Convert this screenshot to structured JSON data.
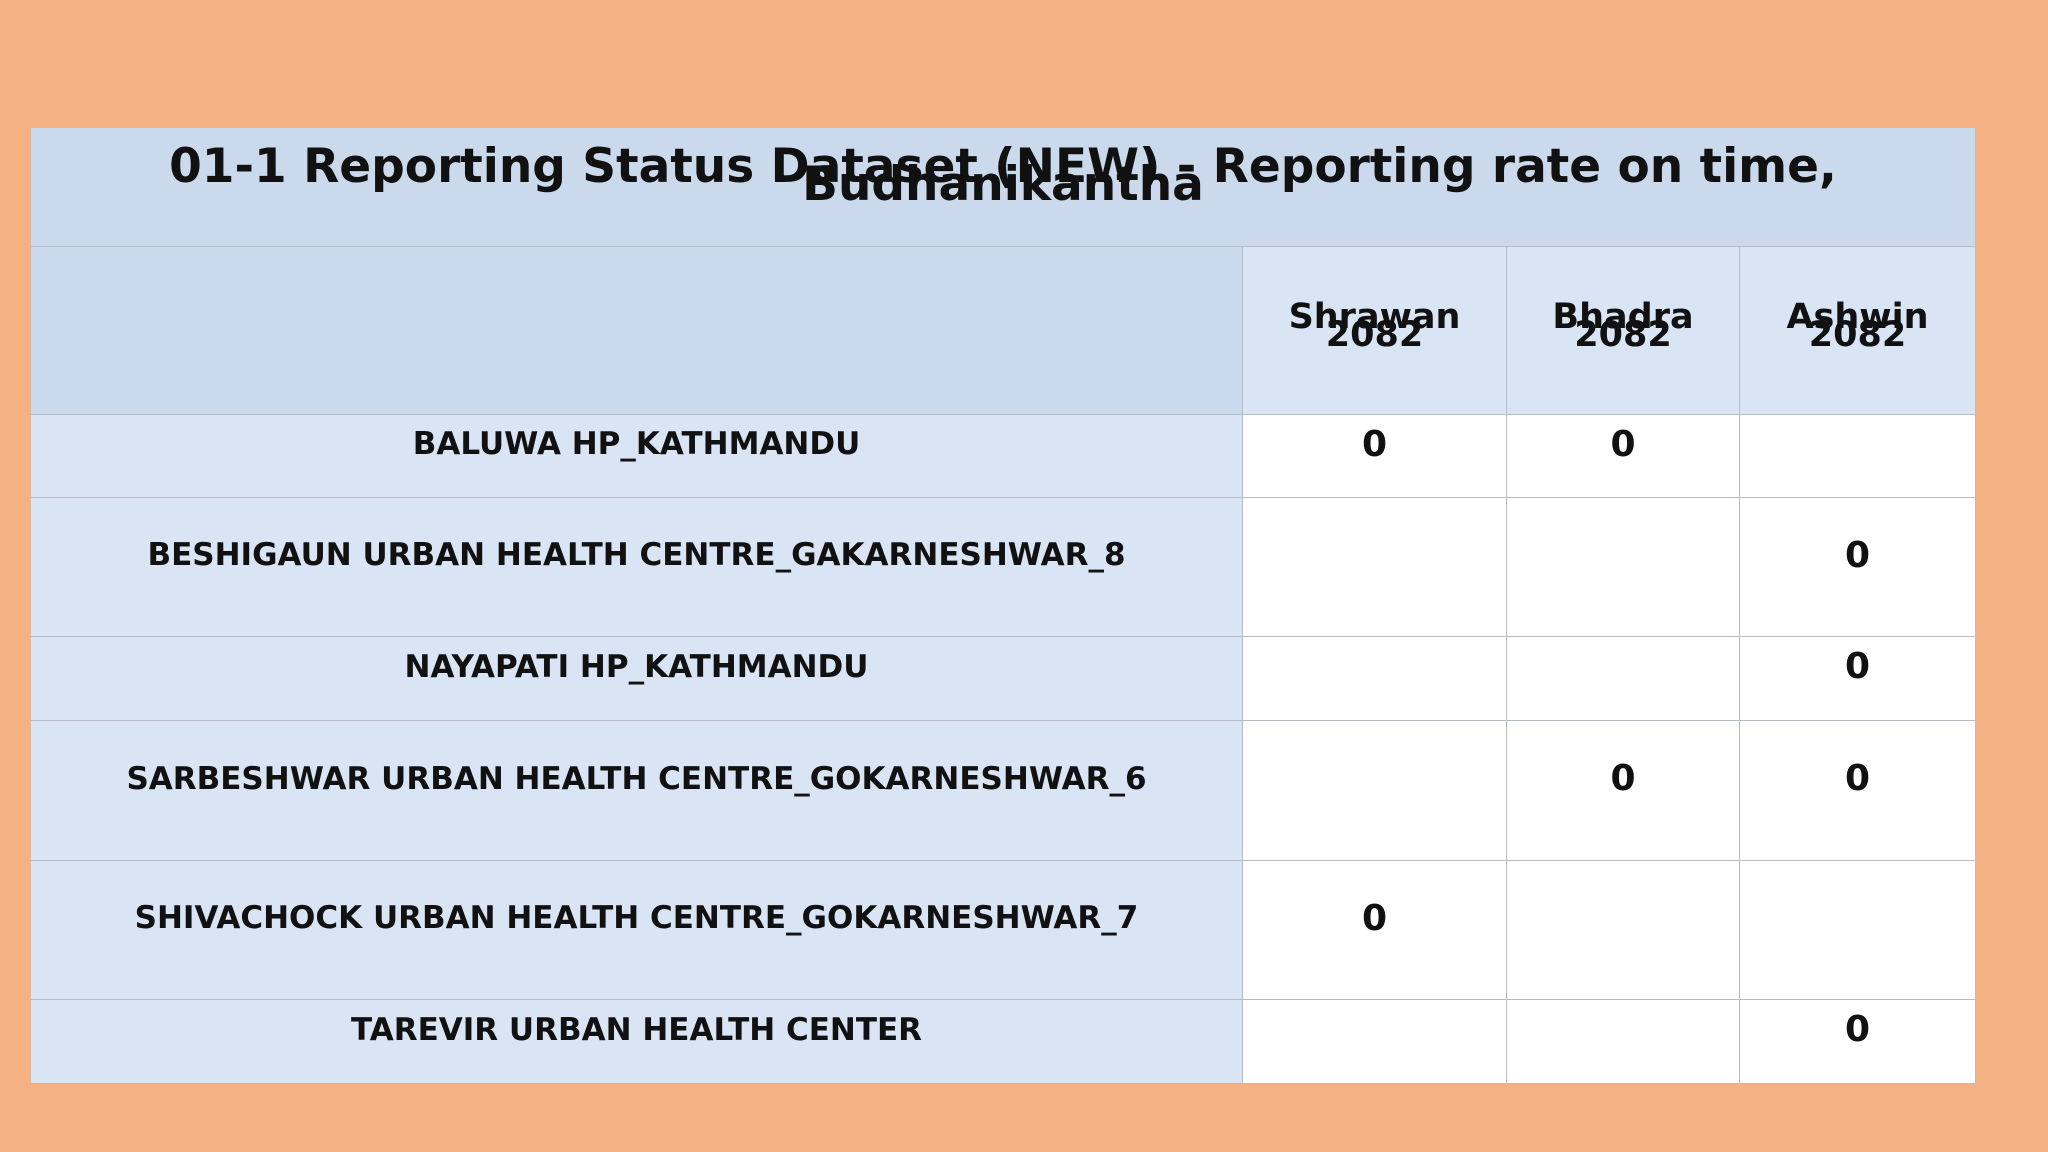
{
  "table": {
    "title": "01-1 Reporting Status Dataset (NEW) - Reporting rate on time, Budhanikantha",
    "columns": [
      "Shrawan 2082",
      "Bhadra 2082",
      "Ashwin 2082"
    ],
    "rows": [
      {
        "label": "BALUWA HP_KATHMANDU",
        "cells": [
          0,
          0,
          null
        ]
      },
      {
        "label": "BESHIGAUN URBAN HEALTH CENTRE_GAKARNESHWAR_8",
        "cells": [
          null,
          null,
          0
        ]
      },
      {
        "label": "NAYAPATI HP_KATHMANDU",
        "cells": [
          null,
          null,
          0
        ]
      },
      {
        "label": "SARBESHWAR URBAN HEALTH CENTRE_GOKARNESHWAR_6",
        "cells": [
          null,
          0,
          0
        ]
      },
      {
        "label": "SHIVACHOCK URBAN HEALTH CENTRE_GOKARNESHWAR_7",
        "cells": [
          0,
          null,
          null
        ]
      },
      {
        "label": "TAREVIR URBAN HEALTH CENTER",
        "cells": [
          null,
          null,
          0
        ]
      }
    ]
  }
}
